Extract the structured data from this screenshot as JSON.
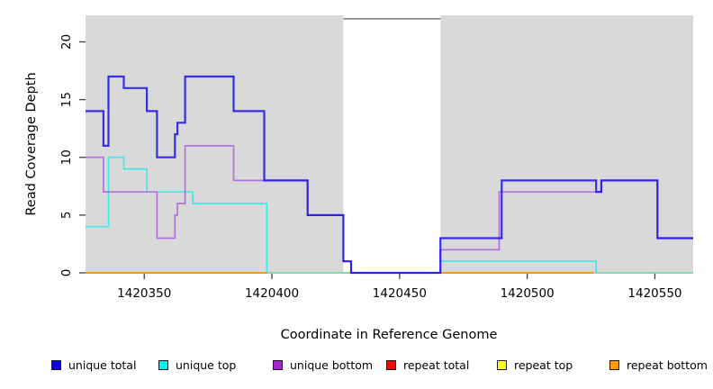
{
  "axes": {
    "y_label": "Read Coverage Depth",
    "x_label": "Coordinate in Reference Genome",
    "y_ticks": [
      0,
      5,
      10,
      15,
      20
    ],
    "x_ticks": [
      1420350,
      1420400,
      1420450,
      1420500,
      1420550
    ]
  },
  "legend": [
    {
      "label": "unique total",
      "color": "#0d00dd"
    },
    {
      "label": "unique top",
      "color": "#00f2f2"
    },
    {
      "label": "unique bottom",
      "color": "#a228cc"
    },
    {
      "label": "repeat total",
      "color": "#ea0c0c"
    },
    {
      "label": "repeat top",
      "color": "#fdfd10"
    },
    {
      "label": "repeat bottom",
      "color": "#ff9d00"
    }
  ],
  "chart_data": {
    "type": "line",
    "step": true,
    "title": "",
    "xlabel": "Coordinate in Reference Genome",
    "ylabel": "Read Coverage Depth",
    "xlim": [
      1420327,
      1420565
    ],
    "ylim": [
      0,
      22.3
    ],
    "grid": false,
    "legend_position": "bottom",
    "plot_background": "#d9d9d9",
    "gap_region": {
      "from": 1420428,
      "to": 1420466,
      "color": "#ffffff",
      "top_line_value": 22,
      "top_line_color": "#7f7f7f"
    },
    "series": [
      {
        "name": "unique top",
        "color": "#45e6e8",
        "width": 1.7,
        "points": [
          [
            1420327,
            4
          ],
          [
            1420336,
            10
          ],
          [
            1420342,
            9
          ],
          [
            1420351,
            7
          ],
          [
            1420369,
            6
          ],
          [
            1420398,
            0
          ],
          [
            1420466,
            1
          ],
          [
            1420527,
            0
          ]
        ],
        "end": 1420565
      },
      {
        "name": "zero baseline",
        "color": "#8fd492",
        "width": 1.6,
        "points": [
          [
            1420398,
            0
          ]
        ],
        "end": 1420565
      },
      {
        "name": "repeat bottom (segment 1)",
        "color": "#ff9714",
        "width": 2,
        "points": [
          [
            1420327,
            0
          ]
        ],
        "end": 1420398
      },
      {
        "name": "repeat bottom (segment 2)",
        "color": "#ff9714",
        "width": 2,
        "points": [
          [
            1420466,
            0
          ]
        ],
        "end": 1420526
      },
      {
        "name": "unique bottom",
        "color": "#b671e0",
        "width": 1.7,
        "points": [
          [
            1420327,
            10
          ],
          [
            1420334,
            7
          ],
          [
            1420355,
            3
          ],
          [
            1420362,
            5
          ],
          [
            1420363,
            6
          ],
          [
            1420366,
            11
          ],
          [
            1420385,
            8
          ],
          [
            1420414,
            5
          ],
          [
            1420428,
            1
          ],
          [
            1420431,
            0
          ],
          [
            1420466,
            2
          ],
          [
            1420489,
            7
          ],
          [
            1420529,
            8
          ],
          [
            1420551,
            3
          ]
        ],
        "end": 1420565
      },
      {
        "name": "unique total",
        "color": "#1a10e6",
        "width": 2.2,
        "opacity": 0.85,
        "points": [
          [
            1420327,
            14
          ],
          [
            1420334,
            11
          ],
          [
            1420336,
            17
          ],
          [
            1420342,
            16
          ],
          [
            1420351,
            14
          ],
          [
            1420355,
            10
          ],
          [
            1420362,
            12
          ],
          [
            1420363,
            13
          ],
          [
            1420366,
            17
          ],
          [
            1420385,
            14
          ],
          [
            1420397,
            8
          ],
          [
            1420414,
            5
          ],
          [
            1420428,
            1
          ],
          [
            1420431,
            0
          ],
          [
            1420466,
            3
          ],
          [
            1420490,
            8
          ],
          [
            1420527,
            7
          ],
          [
            1420529,
            8
          ],
          [
            1420551,
            3
          ]
        ],
        "end": 1420565
      }
    ],
    "hidden_series_note": "repeat total and repeat top are not visibly distinct (coincide at depth 0 beneath repeat bottom)"
  }
}
